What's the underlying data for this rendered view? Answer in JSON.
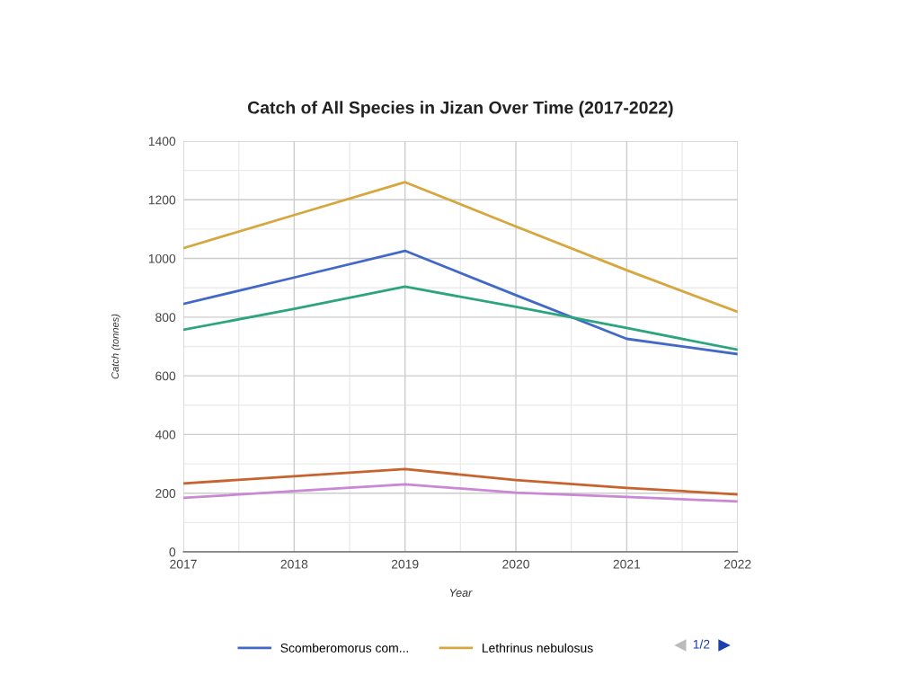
{
  "chart_data": {
    "type": "line",
    "title": "Catch of All Species in Jizan Over Time (2017-2022)",
    "xlabel": "Year",
    "ylabel": "Catch (tonnes)",
    "x": [
      2017,
      2018,
      2019,
      2020,
      2021,
      2022
    ],
    "series": [
      {
        "name": "Scomberomorus com...",
        "color": "#4269c7",
        "values": [
          845,
          935,
          1026,
          875,
          726,
          674
        ]
      },
      {
        "name": "Lethrinus nebulosus",
        "color": "#d6a73f",
        "values": [
          1035,
          1148,
          1260,
          1109,
          960,
          818
        ]
      },
      {
        "color": "#2ca57f",
        "values": [
          757,
          828,
          904,
          835,
          763,
          689
        ]
      },
      {
        "color": "#c8632d",
        "values": [
          233,
          258,
          282,
          245,
          218,
          196
        ]
      },
      {
        "color": "#c987d4",
        "values": [
          184,
          207,
          230,
          202,
          187,
          172
        ]
      }
    ],
    "xlim": [
      2017,
      2022
    ],
    "xticks": [
      2017,
      2018,
      2019,
      2020,
      2021,
      2022
    ],
    "ylim": [
      0,
      1400
    ],
    "yticks": [
      0,
      200,
      400,
      600,
      800,
      1000,
      1200,
      1400
    ],
    "grid": true,
    "legend": "bottom",
    "marker": "none",
    "line_style": "solid",
    "annotations": [
      "1/2"
    ]
  }
}
